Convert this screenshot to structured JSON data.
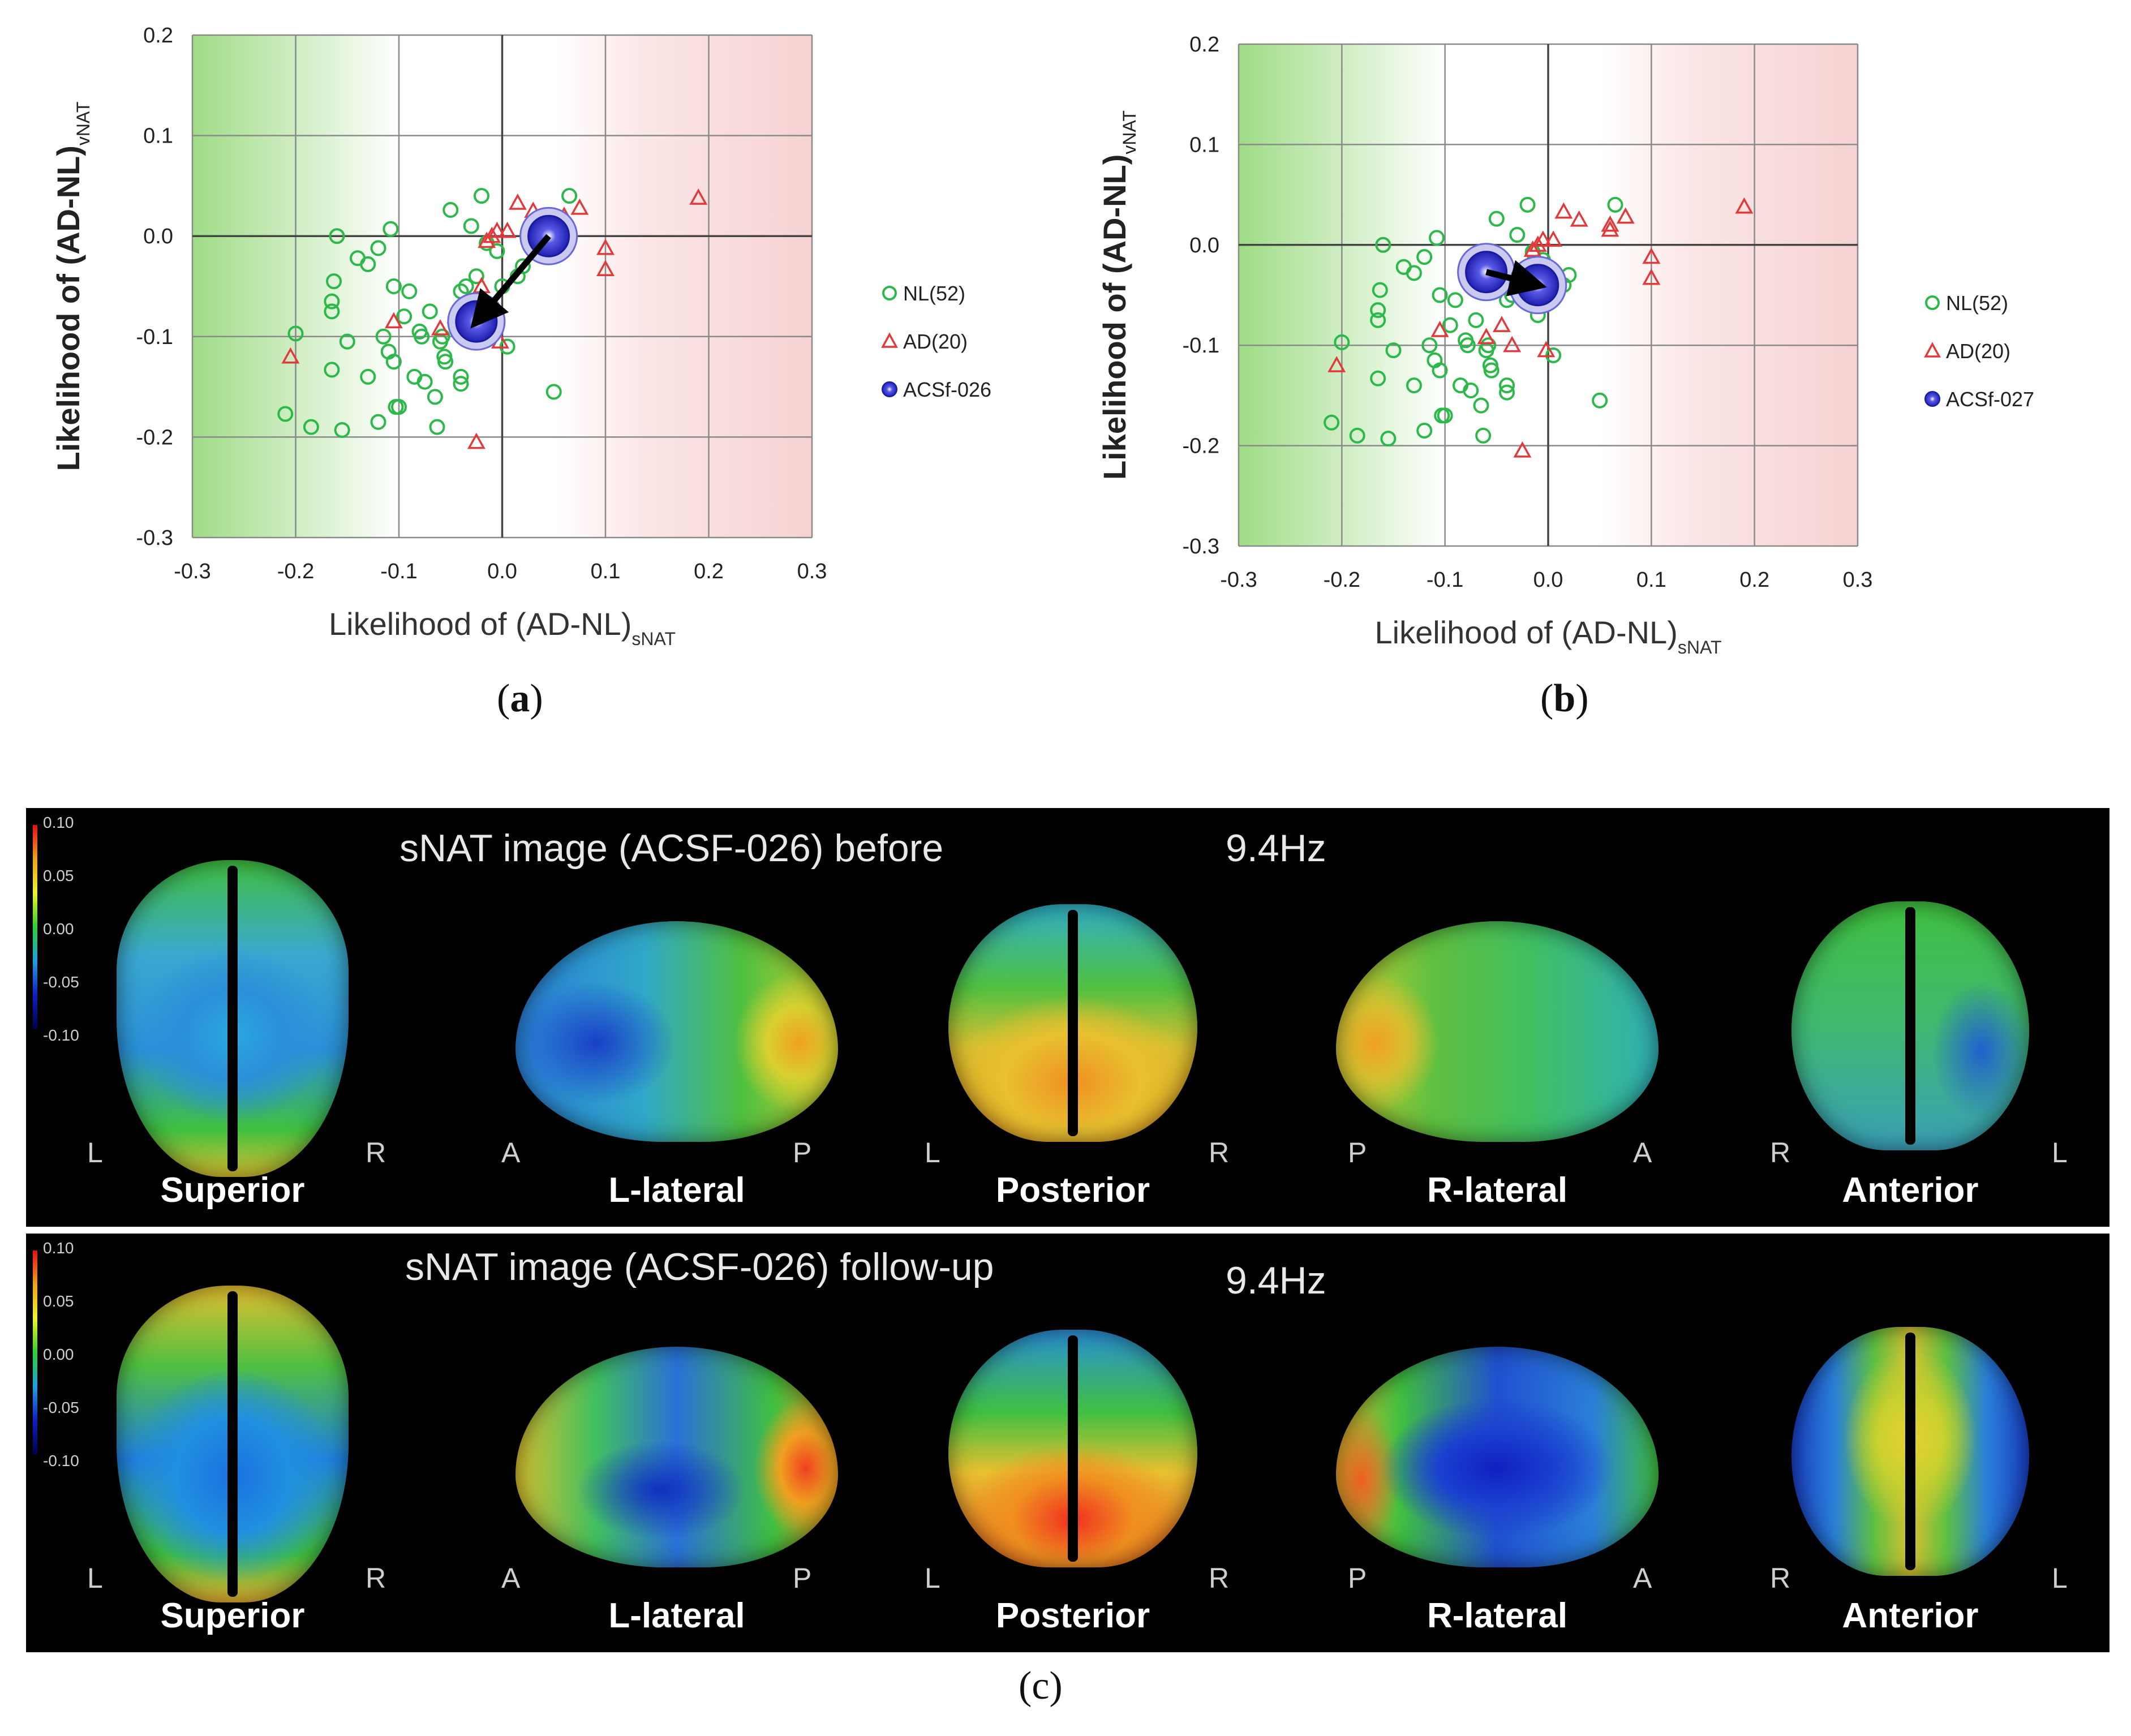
{
  "captions": {
    "a": "a",
    "b": "b",
    "c": "c"
  },
  "chart_data": [
    {
      "id": "a",
      "type": "scatter",
      "xlabel_main": "Likelihood of (AD-NL)",
      "xlabel_sub": "sNAT",
      "ylabel_main": "Likelihood of (AD-NL)",
      "ylabel_sub": "vNAT",
      "xlim": [
        -0.3,
        0.3
      ],
      "ylim": [
        -0.3,
        0.2
      ],
      "x_ticks": [
        -0.3,
        -0.2,
        -0.1,
        0.0,
        0.1,
        0.2,
        0.3
      ],
      "y_ticks": [
        -0.3,
        -0.2,
        -0.1,
        0.0,
        0.1,
        0.2
      ],
      "x_tick_labels": [
        "-0.3",
        "-0.2",
        "-0.1",
        "0.0",
        "0.1",
        "0.2",
        "0.3"
      ],
      "y_tick_labels": [
        "-0.3",
        "-0.2",
        "-0.1",
        "0.0",
        "0.1",
        "0.2"
      ],
      "grid": true,
      "legend_position": "right",
      "series": [
        {
          "name": "NL(52)",
          "marker": "circle",
          "color": "#2db84a",
          "points": [
            [
              -0.21,
              -0.177
            ],
            [
              -0.2,
              -0.097
            ],
            [
              -0.185,
              -0.19
            ],
            [
              -0.165,
              -0.133
            ],
            [
              -0.165,
              -0.075
            ],
            [
              -0.165,
              -0.065
            ],
            [
              -0.163,
              -0.045
            ],
            [
              -0.16,
              0.0
            ],
            [
              -0.155,
              -0.193
            ],
            [
              -0.15,
              -0.105
            ],
            [
              -0.14,
              -0.022
            ],
            [
              -0.13,
              -0.028
            ],
            [
              -0.13,
              -0.14
            ],
            [
              -0.12,
              -0.012
            ],
            [
              -0.12,
              -0.185
            ],
            [
              -0.115,
              -0.1
            ],
            [
              -0.11,
              -0.115
            ],
            [
              -0.108,
              0.007
            ],
            [
              -0.105,
              -0.05
            ],
            [
              -0.105,
              -0.125
            ],
            [
              -0.103,
              -0.17
            ],
            [
              -0.1,
              -0.17
            ],
            [
              -0.095,
              -0.08
            ],
            [
              -0.09,
              -0.055
            ],
            [
              -0.085,
              -0.14
            ],
            [
              -0.08,
              -0.095
            ],
            [
              -0.078,
              -0.1
            ],
            [
              -0.075,
              -0.145
            ],
            [
              -0.07,
              -0.075
            ],
            [
              -0.065,
              -0.16
            ],
            [
              -0.063,
              -0.19
            ],
            [
              -0.06,
              -0.105
            ],
            [
              -0.058,
              -0.1
            ],
            [
              -0.056,
              -0.12
            ],
            [
              -0.055,
              -0.125
            ],
            [
              -0.05,
              0.026
            ],
            [
              -0.04,
              -0.055
            ],
            [
              -0.04,
              -0.14
            ],
            [
              -0.04,
              -0.147
            ],
            [
              -0.035,
              -0.05
            ],
            [
              -0.03,
              0.01
            ],
            [
              -0.025,
              -0.04
            ],
            [
              -0.02,
              0.04
            ],
            [
              -0.015,
              -0.007
            ],
            [
              -0.01,
              -0.07
            ],
            [
              -0.005,
              -0.015
            ],
            [
              0.0,
              -0.05
            ],
            [
              0.005,
              -0.11
            ],
            [
              0.015,
              -0.04
            ],
            [
              0.02,
              -0.03
            ],
            [
              0.05,
              -0.155
            ],
            [
              0.065,
              0.04
            ]
          ]
        },
        {
          "name": "AD(20)",
          "marker": "triangle",
          "color": "#e23a3a",
          "points": [
            [
              -0.205,
              -0.12
            ],
            [
              -0.105,
              -0.085
            ],
            [
              -0.06,
              -0.092
            ],
            [
              -0.045,
              -0.08
            ],
            [
              -0.035,
              -0.1
            ],
            [
              -0.025,
              -0.205
            ],
            [
              -0.02,
              -0.05
            ],
            [
              -0.015,
              -0.005
            ],
            [
              -0.01,
              0.0
            ],
            [
              -0.005,
              0.005
            ],
            [
              -0.002,
              -0.105
            ],
            [
              0.005,
              0.005
            ],
            [
              0.015,
              0.033
            ],
            [
              0.03,
              0.025
            ],
            [
              0.06,
              0.02
            ],
            [
              0.06,
              0.015
            ],
            [
              0.075,
              0.028
            ],
            [
              0.1,
              -0.012
            ],
            [
              0.1,
              -0.033
            ],
            [
              0.19,
              0.038
            ]
          ]
        },
        {
          "name": "ACSf-026",
          "marker": "circle-large",
          "color": "#3b3bd6",
          "points": [
            [
              0.045,
              0.0
            ],
            [
              -0.025,
              -0.085
            ]
          ],
          "arrow_from": [
            0.045,
            0.0
          ],
          "arrow_to": [
            -0.025,
            -0.085
          ]
        }
      ]
    },
    {
      "id": "b",
      "type": "scatter",
      "xlabel_main": "Likelihood of (AD-NL)",
      "xlabel_sub": "sNAT",
      "ylabel_main": "Likelihood of (AD-NL)",
      "ylabel_sub": "vNAT",
      "xlim": [
        -0.3,
        0.3
      ],
      "ylim": [
        -0.3,
        0.2
      ],
      "x_ticks": [
        -0.3,
        -0.2,
        -0.1,
        0.0,
        0.1,
        0.2,
        0.3
      ],
      "y_ticks": [
        -0.3,
        -0.2,
        -0.1,
        0.0,
        0.1,
        0.2
      ],
      "x_tick_labels": [
        "-0.3",
        "-0.2",
        "-0.1",
        "0.0",
        "0.1",
        "0.2",
        "0.3"
      ],
      "y_tick_labels": [
        "-0.3",
        "-0.2",
        "-0.1",
        "0.0",
        "0.1",
        "0.2"
      ],
      "grid": true,
      "legend_position": "right",
      "series": [
        {
          "name": "NL(52)",
          "marker": "circle",
          "color": "#2db84a",
          "points": [
            [
              -0.21,
              -0.177
            ],
            [
              -0.2,
              -0.097
            ],
            [
              -0.185,
              -0.19
            ],
            [
              -0.165,
              -0.133
            ],
            [
              -0.165,
              -0.075
            ],
            [
              -0.165,
              -0.065
            ],
            [
              -0.163,
              -0.045
            ],
            [
              -0.16,
              0.0
            ],
            [
              -0.155,
              -0.193
            ],
            [
              -0.15,
              -0.105
            ],
            [
              -0.14,
              -0.022
            ],
            [
              -0.13,
              -0.028
            ],
            [
              -0.13,
              -0.14
            ],
            [
              -0.12,
              -0.012
            ],
            [
              -0.12,
              -0.185
            ],
            [
              -0.115,
              -0.1
            ],
            [
              -0.11,
              -0.115
            ],
            [
              -0.108,
              0.007
            ],
            [
              -0.105,
              -0.05
            ],
            [
              -0.105,
              -0.125
            ],
            [
              -0.103,
              -0.17
            ],
            [
              -0.1,
              -0.17
            ],
            [
              -0.095,
              -0.08
            ],
            [
              -0.09,
              -0.055
            ],
            [
              -0.085,
              -0.14
            ],
            [
              -0.08,
              -0.095
            ],
            [
              -0.078,
              -0.1
            ],
            [
              -0.075,
              -0.145
            ],
            [
              -0.07,
              -0.075
            ],
            [
              -0.065,
              -0.16
            ],
            [
              -0.063,
              -0.19
            ],
            [
              -0.06,
              -0.105
            ],
            [
              -0.058,
              -0.1
            ],
            [
              -0.056,
              -0.12
            ],
            [
              -0.055,
              -0.125
            ],
            [
              -0.05,
              0.026
            ],
            [
              -0.04,
              -0.055
            ],
            [
              -0.04,
              -0.14
            ],
            [
              -0.04,
              -0.147
            ],
            [
              -0.035,
              -0.05
            ],
            [
              -0.03,
              0.01
            ],
            [
              -0.025,
              -0.04
            ],
            [
              -0.02,
              0.04
            ],
            [
              -0.015,
              -0.007
            ],
            [
              -0.01,
              -0.07
            ],
            [
              -0.005,
              -0.015
            ],
            [
              0.0,
              -0.05
            ],
            [
              0.005,
              -0.11
            ],
            [
              0.015,
              -0.04
            ],
            [
              0.02,
              -0.03
            ],
            [
              0.05,
              -0.155
            ],
            [
              0.065,
              0.04
            ]
          ]
        },
        {
          "name": "AD(20)",
          "marker": "triangle",
          "color": "#e23a3a",
          "points": [
            [
              -0.205,
              -0.12
            ],
            [
              -0.105,
              -0.085
            ],
            [
              -0.06,
              -0.092
            ],
            [
              -0.045,
              -0.08
            ],
            [
              -0.035,
              -0.1
            ],
            [
              -0.025,
              -0.205
            ],
            [
              -0.02,
              -0.05
            ],
            [
              -0.015,
              -0.005
            ],
            [
              -0.01,
              0.0
            ],
            [
              -0.005,
              0.005
            ],
            [
              -0.002,
              -0.105
            ],
            [
              0.005,
              0.005
            ],
            [
              0.015,
              0.033
            ],
            [
              0.03,
              0.025
            ],
            [
              0.06,
              0.02
            ],
            [
              0.06,
              0.015
            ],
            [
              0.075,
              0.028
            ],
            [
              0.1,
              -0.012
            ],
            [
              0.1,
              -0.033
            ],
            [
              0.19,
              0.038
            ]
          ]
        },
        {
          "name": "ACSf-027",
          "marker": "circle-large",
          "color": "#3b3bd6",
          "points": [
            [
              -0.06,
              -0.027
            ],
            [
              -0.01,
              -0.04
            ]
          ],
          "arrow_from": [
            -0.06,
            -0.027
          ],
          "arrow_to": [
            -0.01,
            -0.04
          ]
        }
      ]
    }
  ],
  "panel_c": {
    "rows": [
      {
        "title": "sNAT image (ACSF-026) before",
        "freq": "9.4Hz",
        "views": [
          {
            "name": "Superior",
            "left": "L",
            "right": "R"
          },
          {
            "name": "L-lateral",
            "left": "A",
            "right": "P"
          },
          {
            "name": "Posterior",
            "left": "L",
            "right": "R"
          },
          {
            "name": "R-lateral",
            "left": "P",
            "right": "A"
          },
          {
            "name": "Anterior",
            "left": "R",
            "right": "L"
          }
        ]
      },
      {
        "title": "sNAT image (ACSF-026) follow-up",
        "freq": "9.4Hz",
        "views": [
          {
            "name": "Superior",
            "left": "L",
            "right": "R"
          },
          {
            "name": "L-lateral",
            "left": "A",
            "right": "P"
          },
          {
            "name": "Posterior",
            "left": "L",
            "right": "R"
          },
          {
            "name": "R-lateral",
            "left": "P",
            "right": "A"
          },
          {
            "name": "Anterior",
            "left": "R",
            "right": "L"
          }
        ]
      }
    ],
    "colorbar_ticks": [
      "0.10",
      "0.05",
      "0.00",
      "-0.05",
      "-0.10"
    ]
  }
}
